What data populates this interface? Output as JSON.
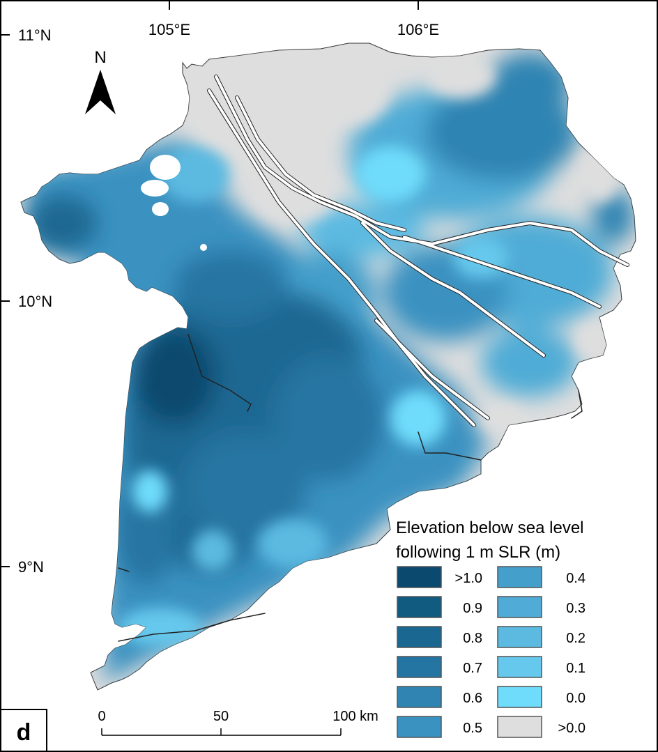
{
  "panel_label": "d",
  "north_arrow": {
    "label": "N",
    "icon": "north-arrow-icon"
  },
  "graticule": {
    "longitude_labels": [
      "105°E",
      "106°E"
    ],
    "latitude_labels": [
      "11°N",
      "10°N",
      "9°N"
    ]
  },
  "scale_bar": {
    "labels": [
      "0",
      "50",
      "100 km"
    ],
    "values_km": [
      0,
      50,
      100
    ]
  },
  "legend": {
    "title_line1": "Elevation below sea level",
    "title_line2": "following 1 m SLR (m)",
    "items": [
      {
        "label": ">1.0",
        "color": "#0b4a6e"
      },
      {
        "label": "0.9",
        "color": "#115a80"
      },
      {
        "label": "0.8",
        "color": "#1a6792"
      },
      {
        "label": "0.7",
        "color": "#2575a2"
      },
      {
        "label": "0.6",
        "color": "#2f84b2"
      },
      {
        "label": "0.5",
        "color": "#3a92c1"
      },
      {
        "label": "0.4",
        "color": "#449fcb"
      },
      {
        "label": "0.3",
        "color": "#50acd6"
      },
      {
        "label": "0.2",
        "color": "#5cbae1"
      },
      {
        "label": "0.1",
        "color": "#66c8ec"
      },
      {
        "label": "0.0",
        "color": "#6fdcfb"
      },
      {
        "label": ">0.0",
        "color": "#dedede"
      }
    ]
  },
  "colors": {
    "river": "#ffffff",
    "outline": "#222222",
    "land_above": "#dedede"
  }
}
